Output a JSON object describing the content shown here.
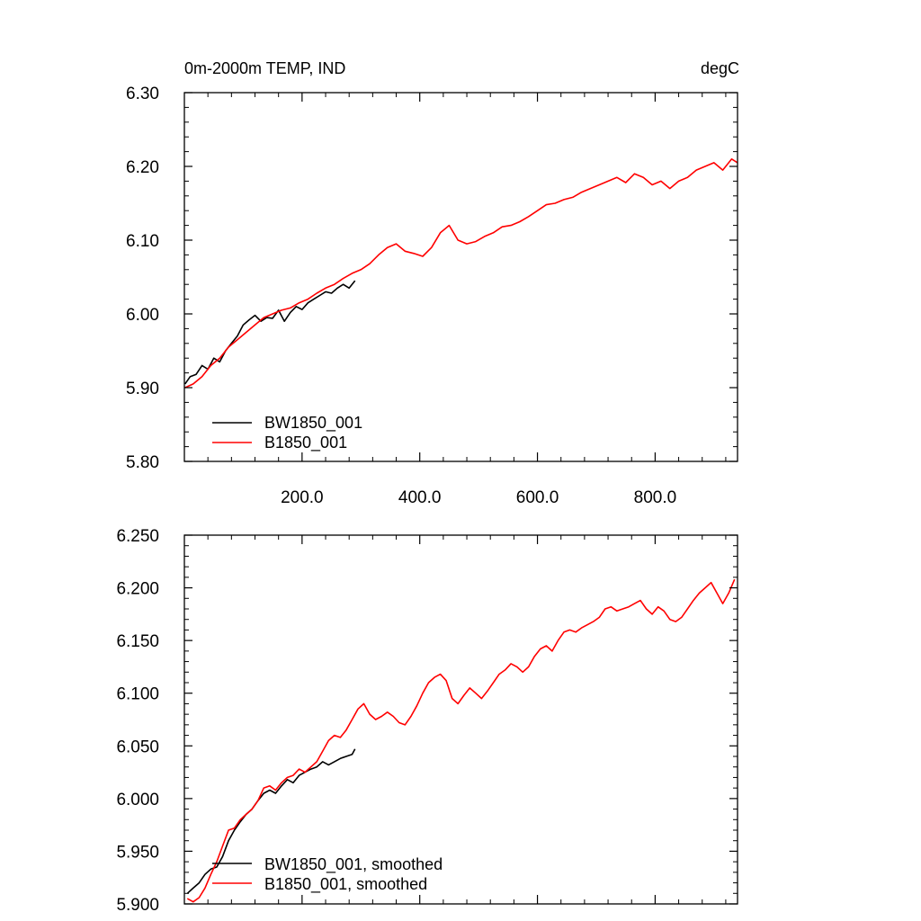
{
  "chart_data": [
    {
      "type": "line",
      "title": "0m-2000m TEMP, IND",
      "units": "degC",
      "xlim": [
        0,
        940
      ],
      "ylim": [
        5.8,
        6.3
      ],
      "xticks": [
        {
          "v": 200,
          "label": "200.0"
        },
        {
          "v": 400,
          "label": "400.0"
        },
        {
          "v": 600,
          "label": "600.0"
        },
        {
          "v": 800,
          "label": "800.0"
        }
      ],
      "yticks": [
        {
          "v": 5.8,
          "label": "5.80"
        },
        {
          "v": 5.9,
          "label": "5.90"
        },
        {
          "v": 6.0,
          "label": "6.00"
        },
        {
          "v": 6.1,
          "label": "6.10"
        },
        {
          "v": 6.2,
          "label": "6.20"
        },
        {
          "v": 6.3,
          "label": "6.30"
        }
      ],
      "grid": false,
      "legend_position": "bottom-left",
      "series": [
        {
          "name": "BW1850_001",
          "color": "#000000",
          "x": [
            1,
            10,
            20,
            30,
            40,
            50,
            60,
            70,
            80,
            90,
            100,
            110,
            120,
            130,
            140,
            150,
            160,
            170,
            180,
            190,
            200,
            210,
            220,
            230,
            240,
            250,
            260,
            270,
            280,
            290
          ],
          "y": [
            5.905,
            5.915,
            5.918,
            5.93,
            5.925,
            5.94,
            5.935,
            5.95,
            5.96,
            5.97,
            5.985,
            5.992,
            5.998,
            5.99,
            5.995,
            5.994,
            6.005,
            5.99,
            6.002,
            6.01,
            6.006,
            6.015,
            6.02,
            6.025,
            6.03,
            6.028,
            6.035,
            6.04,
            6.035,
            6.045
          ]
        },
        {
          "name": "B1850_001",
          "color": "#ff0000",
          "x": [
            1,
            15,
            30,
            45,
            60,
            75,
            90,
            105,
            120,
            135,
            150,
            165,
            180,
            195,
            210,
            225,
            240,
            255,
            270,
            285,
            300,
            315,
            330,
            345,
            360,
            375,
            390,
            405,
            420,
            435,
            450,
            465,
            480,
            495,
            510,
            525,
            540,
            555,
            570,
            585,
            600,
            615,
            630,
            645,
            660,
            675,
            690,
            705,
            720,
            735,
            750,
            765,
            780,
            795,
            810,
            825,
            840,
            855,
            870,
            885,
            900,
            915,
            930,
            940
          ],
          "y": [
            5.9,
            5.905,
            5.915,
            5.93,
            5.94,
            5.955,
            5.965,
            5.975,
            5.985,
            5.995,
            6.0,
            6.005,
            6.008,
            6.015,
            6.02,
            6.028,
            6.035,
            6.04,
            6.048,
            6.055,
            6.06,
            6.068,
            6.08,
            6.09,
            6.095,
            6.085,
            6.082,
            6.078,
            6.09,
            6.11,
            6.12,
            6.1,
            6.095,
            6.098,
            6.105,
            6.11,
            6.118,
            6.12,
            6.125,
            6.132,
            6.14,
            6.148,
            6.15,
            6.155,
            6.158,
            6.165,
            6.17,
            6.175,
            6.18,
            6.185,
            6.178,
            6.19,
            6.185,
            6.175,
            6.18,
            6.17,
            6.18,
            6.185,
            6.195,
            6.2,
            6.205,
            6.195,
            6.21,
            6.205
          ]
        }
      ]
    },
    {
      "type": "line",
      "xlim": [
        0,
        940
      ],
      "ylim": [
        5.9,
        6.25
      ],
      "yticks": [
        {
          "v": 5.9,
          "label": "5.900"
        },
        {
          "v": 5.95,
          "label": "5.950"
        },
        {
          "v": 6.0,
          "label": "6.000"
        },
        {
          "v": 6.05,
          "label": "6.050"
        },
        {
          "v": 6.1,
          "label": "6.100"
        },
        {
          "v": 6.15,
          "label": "6.150"
        },
        {
          "v": 6.2,
          "label": "6.200"
        },
        {
          "v": 6.25,
          "label": "6.250"
        }
      ],
      "grid": false,
      "legend_position": "bottom-left",
      "series": [
        {
          "name": "BW1850_001, smoothed",
          "color": "#000000",
          "x": [
            5,
            15,
            25,
            35,
            45,
            55,
            65,
            75,
            85,
            95,
            105,
            115,
            125,
            135,
            145,
            155,
            165,
            175,
            185,
            195,
            205,
            215,
            225,
            235,
            245,
            255,
            265,
            275,
            285,
            290
          ],
          "y": [
            5.91,
            5.915,
            5.92,
            5.928,
            5.933,
            5.935,
            5.945,
            5.96,
            5.97,
            5.978,
            5.985,
            5.99,
            5.998,
            6.005,
            6.008,
            6.005,
            6.012,
            6.018,
            6.015,
            6.022,
            6.025,
            6.028,
            6.03,
            6.035,
            6.032,
            6.035,
            6.038,
            6.04,
            6.042,
            6.047
          ]
        },
        {
          "name": "B1850_001, smoothed",
          "color": "#ff0000",
          "x": [
            5,
            15,
            25,
            35,
            45,
            55,
            65,
            75,
            85,
            95,
            105,
            115,
            125,
            135,
            145,
            155,
            165,
            175,
            185,
            195,
            205,
            215,
            225,
            235,
            245,
            255,
            265,
            275,
            285,
            295,
            305,
            315,
            325,
            335,
            345,
            355,
            365,
            375,
            385,
            395,
            405,
            415,
            425,
            435,
            445,
            455,
            465,
            475,
            485,
            495,
            505,
            515,
            525,
            535,
            545,
            555,
            565,
            575,
            585,
            595,
            605,
            615,
            625,
            635,
            645,
            655,
            665,
            675,
            685,
            695,
            705,
            715,
            725,
            735,
            745,
            755,
            765,
            775,
            785,
            795,
            805,
            815,
            825,
            835,
            845,
            855,
            865,
            875,
            885,
            895,
            905,
            915,
            925,
            935
          ],
          "y": [
            5.905,
            5.902,
            5.906,
            5.915,
            5.928,
            5.94,
            5.955,
            5.97,
            5.972,
            5.98,
            5.985,
            5.99,
            5.998,
            6.01,
            6.012,
            6.008,
            6.015,
            6.02,
            6.022,
            6.028,
            6.025,
            6.03,
            6.035,
            6.045,
            6.055,
            6.06,
            6.058,
            6.065,
            6.075,
            6.085,
            6.09,
            6.08,
            6.075,
            6.078,
            6.082,
            6.078,
            6.072,
            6.07,
            6.078,
            6.088,
            6.1,
            6.11,
            6.115,
            6.118,
            6.112,
            6.095,
            6.09,
            6.098,
            6.105,
            6.1,
            6.095,
            6.102,
            6.11,
            6.118,
            6.122,
            6.128,
            6.125,
            6.12,
            6.125,
            6.135,
            6.142,
            6.145,
            6.14,
            6.15,
            6.158,
            6.16,
            6.158,
            6.162,
            6.165,
            6.168,
            6.172,
            6.18,
            6.182,
            6.178,
            6.18,
            6.182,
            6.185,
            6.188,
            6.18,
            6.175,
            6.182,
            6.178,
            6.17,
            6.168,
            6.172,
            6.18,
            6.188,
            6.195,
            6.2,
            6.205,
            6.195,
            6.185,
            6.195,
            6.208
          ]
        }
      ]
    }
  ]
}
